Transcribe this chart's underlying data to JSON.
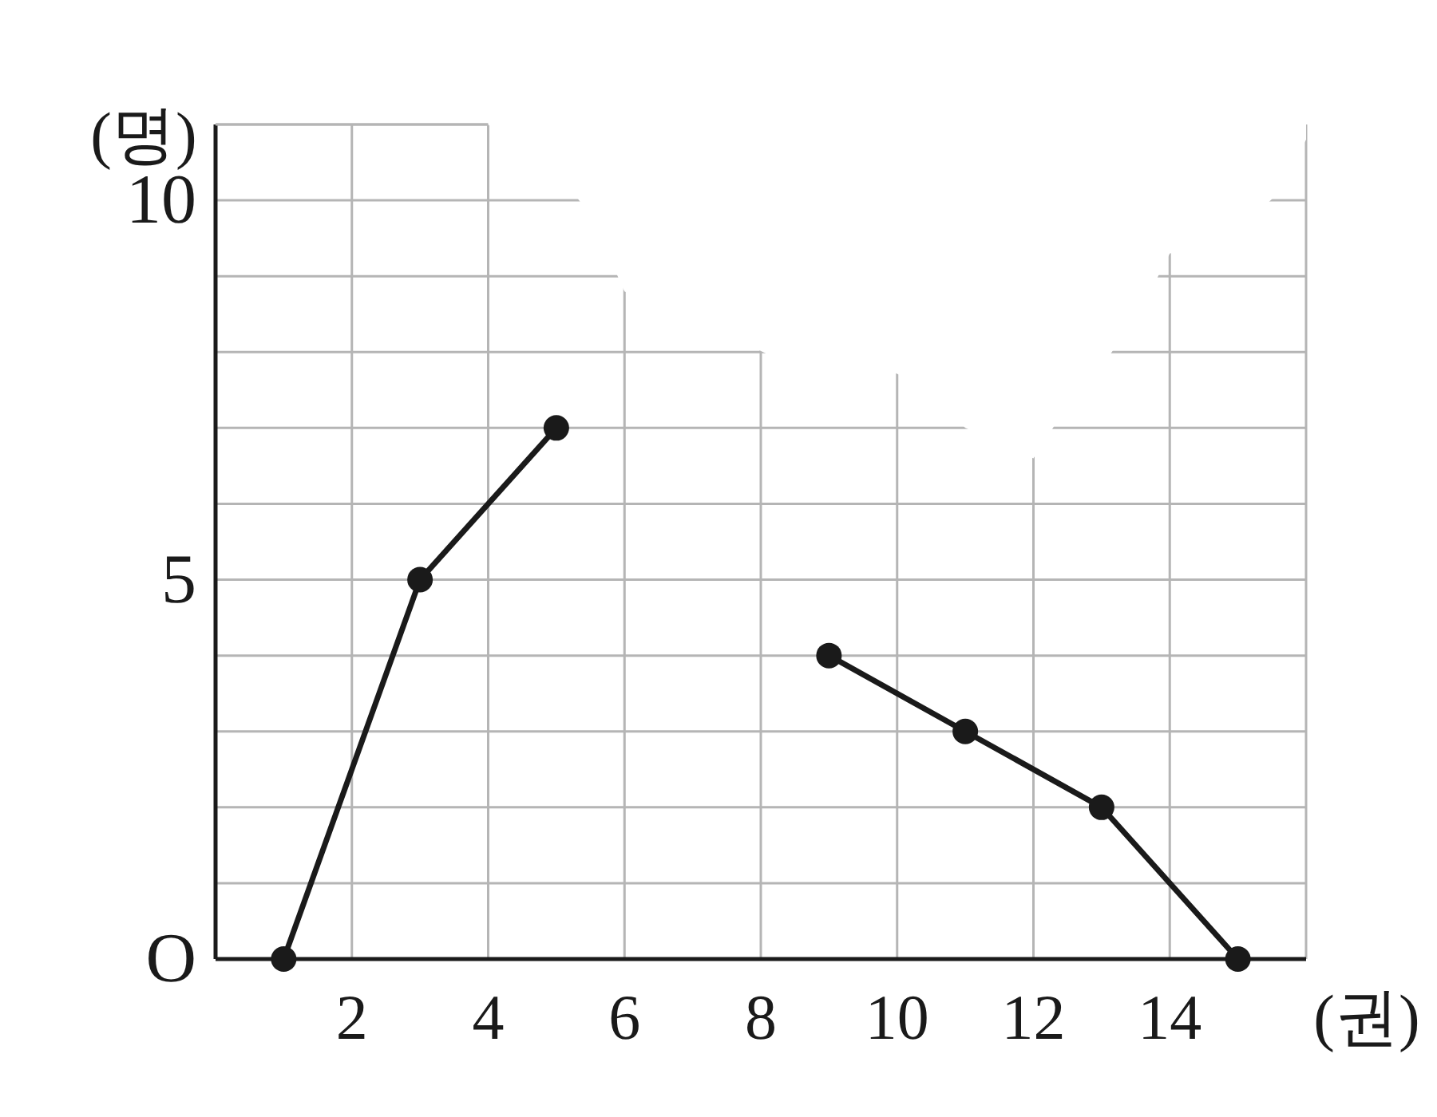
{
  "chart_data": {
    "type": "line",
    "xlabel": "(권)",
    "ylabel": "(명)",
    "series": [
      {
        "color": "#1a1a1a",
        "x": [
          1,
          3,
          5
        ],
        "values": [
          0,
          5,
          7
        ]
      },
      {
        "color": "#1a1a1a",
        "x": [
          9,
          11,
          13,
          15
        ],
        "values": [
          4,
          3,
          2,
          0
        ]
      }
    ],
    "xlim": [
      0,
      16
    ],
    "ylim": [
      0,
      11
    ],
    "xticks": [
      2,
      4,
      6,
      8,
      10,
      12,
      14,
      {
        "value": 16,
        "label": null
      }
    ],
    "yticks": [
      {
        "value": 0,
        "label": "O"
      },
      {
        "value": 1,
        "label": null
      },
      {
        "value": 2,
        "label": null
      },
      {
        "value": 3,
        "label": null
      },
      {
        "value": 4,
        "label": null
      },
      5,
      {
        "value": 6,
        "label": null
      },
      {
        "value": 7,
        "label": null
      },
      {
        "value": 8,
        "label": null
      },
      {
        "value": 9,
        "label": null
      },
      10,
      {
        "value": 11,
        "label": null
      }
    ],
    "grid": true,
    "marker": "circle",
    "line_style": "solid"
  }
}
